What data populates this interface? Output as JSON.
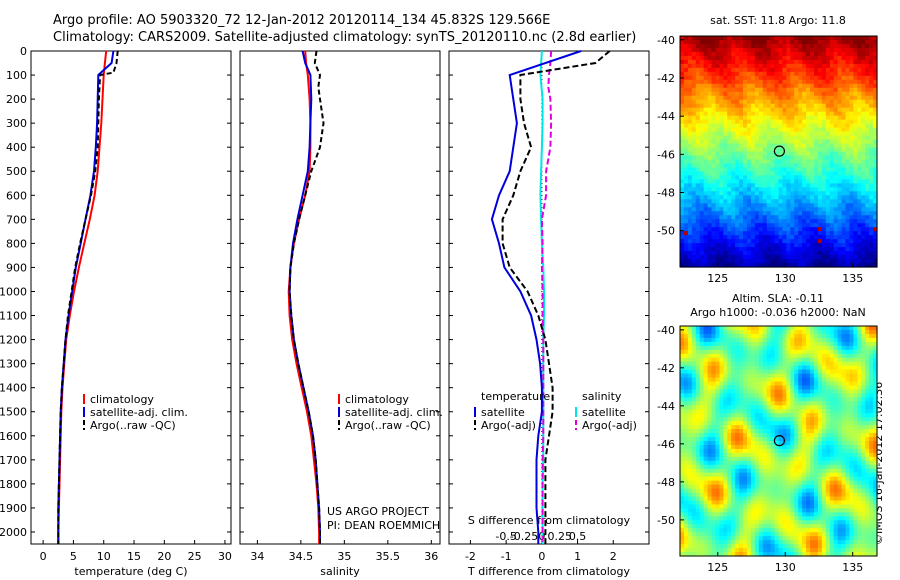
{
  "title_line1": "Argo profile: AO 5903320_72 12-Jan-2012 20120114_134 45.832S 129.566E",
  "title_line2": "Climatology: CARS2009. Satellite-adjusted climatology: synTS_20120110.nc (2.8d earlier)",
  "colors": {
    "climatology": "#ff0000",
    "satellite": "#0000dd",
    "argo": "#000000",
    "sat_salinity": "#00e5e5",
    "argo_adj_salinity": "#e000e0"
  },
  "depth_axis": {
    "ticks": [
      0,
      100,
      200,
      300,
      400,
      500,
      600,
      700,
      800,
      900,
      1000,
      1100,
      1200,
      1300,
      1400,
      1500,
      1600,
      1700,
      1800,
      1900,
      2000
    ],
    "range": [
      0,
      2050
    ]
  },
  "temp_panel": {
    "xlabel": "temperature (deg C)",
    "xrange": [
      -2,
      31
    ],
    "xticks": [
      0,
      5,
      10,
      15,
      20,
      25,
      30
    ],
    "legend": [
      "climatology",
      "satellite-adj. clim.",
      "Argo(..raw -QC)"
    ]
  },
  "sal_panel": {
    "xlabel": "salinity",
    "xrange": [
      33.8,
      36.1
    ],
    "xticks": [
      34,
      34.5,
      35,
      35.5,
      36
    ],
    "legend": [
      "climatology",
      "satellite-adj. clim.",
      "Argo(..raw -QC)"
    ],
    "footer_line1": "US ARGO PROJECT",
    "footer_line2": "PI: DEAN ROEMMICH"
  },
  "diff_panel": {
    "xlabel": "T difference from climatology",
    "top_label": "S difference from climatology",
    "t_range": [
      -2.6,
      3.0
    ],
    "t_ticks": [
      -2,
      -1,
      0,
      1,
      2
    ],
    "s_ticks": [
      {
        "label": "-0.5",
        "t": -1.0
      },
      {
        "label": "-0.25",
        "t": -0.5
      },
      {
        "label": "0",
        "t": 0
      },
      {
        "label": "0.25",
        "t": 0.5
      },
      {
        "label": "0.5",
        "t": 1.0
      }
    ],
    "legend_temp_head": "temperature",
    "legend_sal_head": "salinity",
    "legend_temp": [
      "satellite",
      "Argo(-adj)"
    ],
    "legend_sal": [
      "satellite",
      "Argo(-adj)"
    ]
  },
  "chart_data": [
    {
      "type": "line",
      "xlabel": "temperature (deg C)",
      "ylabel": "",
      "ylim": [
        2050,
        0
      ],
      "series": [
        {
          "name": "climatology",
          "depth": [
            0,
            50,
            100,
            200,
            300,
            400,
            500,
            600,
            700,
            800,
            900,
            1000,
            1100,
            1200,
            1300,
            1400,
            1500,
            1600,
            1700,
            1800,
            1900,
            2000,
            2050
          ],
          "values": [
            10.4,
            10.2,
            10.0,
            9.8,
            9.6,
            9.3,
            9.0,
            8.5,
            7.7,
            6.8,
            5.9,
            5.1,
            4.4,
            3.8,
            3.5,
            3.2,
            3.0,
            2.9,
            2.8,
            2.7,
            2.6,
            2.5,
            2.5
          ]
        },
        {
          "name": "satellite-adj. clim.",
          "depth": [
            0,
            50,
            100,
            200,
            300,
            400,
            500,
            600,
            700,
            800,
            900,
            1000,
            1100,
            1200,
            1300,
            1400,
            1500,
            1600,
            1700,
            1800,
            1900,
            2000,
            2050
          ],
          "values": [
            11.6,
            11.3,
            9.1,
            9.0,
            8.9,
            8.7,
            8.4,
            7.8,
            7.0,
            6.2,
            5.4,
            4.8,
            4.2,
            3.7,
            3.4,
            3.1,
            2.9,
            2.8,
            2.7,
            2.6,
            2.5,
            2.5,
            2.5
          ]
        },
        {
          "name": "Argo(..raw -QC)",
          "depth": [
            0,
            50,
            90,
            100,
            150,
            200,
            300,
            400,
            500,
            600,
            700,
            800,
            900,
            1000,
            1100,
            1200,
            1300,
            1400,
            1500,
            1600,
            1700,
            1800,
            1900,
            2000,
            2050
          ],
          "values": [
            12.3,
            12.1,
            11.6,
            9.4,
            9.3,
            9.2,
            9.1,
            9.0,
            8.6,
            7.9,
            7.0,
            6.1,
            5.3,
            4.7,
            4.1,
            3.7,
            3.4,
            3.1,
            2.9,
            2.8,
            2.7,
            2.6,
            2.5,
            2.5,
            2.5
          ]
        }
      ]
    },
    {
      "type": "line",
      "xlabel": "salinity",
      "ylabel": "",
      "ylim": [
        2050,
        0
      ],
      "series": [
        {
          "name": "climatology",
          "depth": [
            0,
            50,
            100,
            200,
            300,
            400,
            500,
            600,
            700,
            800,
            900,
            1000,
            1100,
            1200,
            1300,
            1400,
            1500,
            1600,
            1700,
            1800,
            1900,
            2000,
            2050
          ],
          "values": [
            34.55,
            34.56,
            34.58,
            34.6,
            34.61,
            34.61,
            34.6,
            34.55,
            34.48,
            34.42,
            34.38,
            34.36,
            34.37,
            34.4,
            34.45,
            34.51,
            34.57,
            34.62,
            34.65,
            34.68,
            34.7,
            34.71,
            34.71
          ]
        },
        {
          "name": "satellite-adj. clim.",
          "depth": [
            0,
            50,
            100,
            200,
            300,
            400,
            500,
            600,
            700,
            800,
            900,
            1000,
            1100,
            1200,
            1300,
            1400,
            1500,
            1600,
            1700,
            1800,
            1900,
            2000,
            2050
          ],
          "values": [
            34.52,
            34.55,
            34.61,
            34.62,
            34.61,
            34.6,
            34.58,
            34.52,
            34.46,
            34.41,
            34.38,
            34.37,
            34.39,
            34.42,
            34.47,
            34.53,
            34.59,
            34.64,
            34.67,
            34.69,
            34.71,
            34.72,
            34.72
          ]
        },
        {
          "name": "Argo(..raw -QC)",
          "depth": [
            0,
            50,
            100,
            150,
            200,
            300,
            400,
            500,
            600,
            700,
            800,
            900,
            1000,
            1100,
            1200,
            1300,
            1400,
            1500,
            1600,
            1700,
            1800,
            1900,
            2000,
            2050
          ],
          "values": [
            34.68,
            34.66,
            34.72,
            34.7,
            34.72,
            34.76,
            34.72,
            34.62,
            34.55,
            34.48,
            34.42,
            34.38,
            34.37,
            34.39,
            34.42,
            34.47,
            34.53,
            34.59,
            34.64,
            34.67,
            34.69,
            34.71,
            34.72,
            34.72
          ]
        }
      ]
    },
    {
      "type": "line",
      "xlabel": "T difference from climatology",
      "ylabel": "",
      "ylim": [
        2050,
        0
      ],
      "series": [
        {
          "name": "satellite",
          "depth": [
            0,
            100,
            200,
            300,
            400,
            500,
            600,
            700,
            800,
            900,
            1000,
            1100,
            1200,
            1300,
            1400,
            1500,
            1600,
            1700,
            1800,
            1900,
            2000,
            2050
          ],
          "values": [
            1.1,
            -0.9,
            -0.8,
            -0.7,
            -0.8,
            -0.9,
            -1.2,
            -1.4,
            -1.2,
            -1.05,
            -0.6,
            -0.3,
            -0.15,
            -0.05,
            0,
            0,
            -0.1,
            -0.15,
            -0.15,
            -0.15,
            -0.1,
            -0.1
          ]
        },
        {
          "name": "Argo(-adj)",
          "depth": [
            0,
            50,
            100,
            200,
            300,
            400,
            500,
            600,
            700,
            800,
            900,
            1000,
            1100,
            1200,
            1300,
            1400,
            1500,
            1600,
            1700,
            1800,
            1900,
            2000,
            2050
          ],
          "values": [
            1.9,
            1.5,
            -0.6,
            -0.6,
            -0.5,
            -0.3,
            -0.6,
            -0.8,
            -1.1,
            -1.1,
            -0.9,
            -0.4,
            -0.1,
            0.1,
            0.2,
            0.3,
            0.3,
            0.2,
            0.1,
            0.1,
            0.1,
            0.1,
            0.1
          ]
        }
      ]
    },
    {
      "type": "line",
      "xlabel": "S difference from climatology",
      "ylabel": "",
      "ylim": [
        2050,
        0
      ],
      "series": [
        {
          "name": "satellite",
          "depth": [
            0,
            100,
            200,
            300,
            400,
            500,
            600,
            700,
            800,
            900,
            1000,
            1100,
            1200,
            1300,
            1400,
            1500,
            1600,
            1700,
            1800,
            1900,
            2000,
            2050
          ],
          "values": [
            0,
            -0.02,
            0.01,
            0.01,
            0.0,
            -0.01,
            -0.02,
            -0.01,
            0.0,
            0.02,
            0.03,
            0.03,
            0.02,
            0.02,
            0.02,
            0.02,
            0.02,
            0.02,
            0.01,
            0.01,
            0.01,
            0.01
          ]
        },
        {
          "name": "Argo(-adj)",
          "depth": [
            0,
            50,
            100,
            150,
            200,
            300,
            400,
            500,
            600,
            700,
            800,
            900,
            1000,
            1100,
            1200,
            1300,
            1400,
            1500,
            1600,
            1700,
            1800,
            1900,
            2000,
            2050
          ],
          "values": [
            0.13,
            0.12,
            0.1,
            0.09,
            0.12,
            0.13,
            0.12,
            0.06,
            0.06,
            0.0,
            0.01,
            0.0,
            0.01,
            0.01,
            0.02,
            0.02,
            0.02,
            0.02,
            0.02,
            0.01,
            0.01,
            0.01,
            0.01,
            0.01
          ]
        }
      ]
    },
    {
      "type": "heatmap",
      "title": "sat. SST: 11.8 Argo: 11.8",
      "x_ticks": [
        125,
        130,
        135
      ],
      "y_ticks": [
        -40,
        -42,
        -44,
        -46,
        -48,
        -50
      ],
      "xlim": [
        122.2,
        136.8
      ],
      "ylim": [
        -51.9,
        -39.8
      ],
      "marker": {
        "lon": 129.566,
        "lat": -45.832
      }
    },
    {
      "type": "heatmap",
      "title_line1": "Altim. SLA: -0.11",
      "title_line2": "Argo h1000: -0.036 h2000: NaN",
      "x_ticks": [
        125,
        130,
        135
      ],
      "y_ticks": [
        -40,
        -42,
        -44,
        -46,
        -48,
        -50
      ],
      "xlim": [
        122.2,
        136.8
      ],
      "ylim": [
        -51.9,
        -39.8
      ],
      "marker": {
        "lon": 129.566,
        "lat": -45.832
      }
    }
  ],
  "copyright": "©IMOS 16-Jan-2012 17:02:36"
}
